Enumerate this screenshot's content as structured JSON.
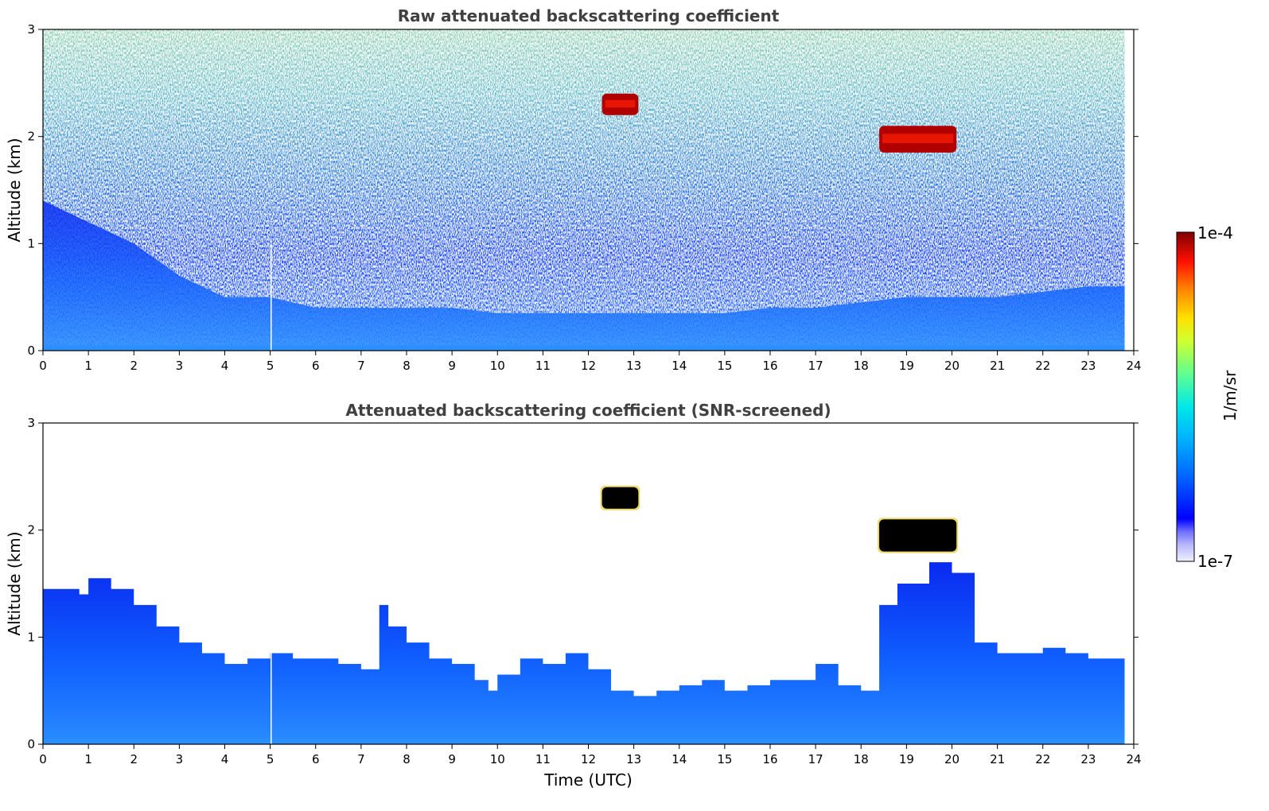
{
  "chart_data": [
    {
      "type": "heatmap",
      "title": "Raw attenuated backscattering coefficient",
      "xlabel": "",
      "ylabel": "Altitude (km)",
      "xlim": [
        0,
        24
      ],
      "ylim": [
        0,
        3
      ],
      "xticks": [
        "0",
        "1",
        "2",
        "3",
        "4",
        "5",
        "6",
        "7",
        "8",
        "9",
        "10",
        "11",
        "12",
        "13",
        "14",
        "15",
        "16",
        "17",
        "18",
        "19",
        "20",
        "21",
        "22",
        "23",
        "24"
      ],
      "yticks": [
        "0",
        "1",
        "2",
        "3"
      ],
      "grid": false,
      "colormap": "jet",
      "color_scale": "log",
      "boundary_layer_top_km": {
        "time_utc": [
          0,
          1,
          2,
          3,
          4,
          5,
          6,
          7,
          8,
          9,
          10,
          11,
          12,
          13,
          14,
          15,
          16,
          17,
          18,
          19,
          20,
          21,
          22,
          23,
          23.8
        ],
        "altitude": [
          1.4,
          1.2,
          1.0,
          0.7,
          0.5,
          0.5,
          0.4,
          0.4,
          0.4,
          0.4,
          0.35,
          0.35,
          0.35,
          0.35,
          0.35,
          0.35,
          0.4,
          0.4,
          0.45,
          0.5,
          0.5,
          0.5,
          0.55,
          0.6,
          0.6
        ]
      },
      "clouds": [
        {
          "t_start": 12.3,
          "t_end": 13.1,
          "alt_bottom_km": 2.2,
          "alt_top_km": 2.4,
          "level": "high"
        },
        {
          "t_start": 18.4,
          "t_end": 20.1,
          "alt_bottom_km": 1.85,
          "alt_top_km": 2.1,
          "level": "high"
        }
      ],
      "data_end_utc": 23.8
    },
    {
      "type": "heatmap",
      "title": "Attenuated backscattering coefficient (SNR-screened)",
      "xlabel": "Time (UTC)",
      "ylabel": "Altitude (km)",
      "xlim": [
        0,
        24
      ],
      "ylim": [
        0,
        3
      ],
      "xticks": [
        "0",
        "1",
        "2",
        "3",
        "4",
        "5",
        "6",
        "7",
        "8",
        "9",
        "10",
        "11",
        "12",
        "13",
        "14",
        "15",
        "16",
        "17",
        "18",
        "19",
        "20",
        "21",
        "22",
        "23",
        "24"
      ],
      "yticks": [
        "0",
        "1",
        "2",
        "3"
      ],
      "grid": false,
      "colormap": "jet",
      "color_scale": "log",
      "boundary_layer_top_km": {
        "time_utc": [
          0,
          0.8,
          1,
          1.5,
          2,
          2.5,
          3,
          3.5,
          4,
          4.5,
          5,
          5.5,
          6,
          6.5,
          7,
          7.4,
          7.6,
          8,
          8.5,
          9,
          9.5,
          9.8,
          10,
          10.5,
          11,
          11.5,
          12,
          12.5,
          13,
          13.5,
          14,
          14.5,
          15,
          15.5,
          16,
          16.5,
          17,
          17.5,
          18,
          18.4,
          18.8,
          19.5,
          20,
          20.5,
          21,
          21.5,
          22,
          22.5,
          23,
          23.5,
          23.8
        ],
        "altitude": [
          1.45,
          1.4,
          1.55,
          1.45,
          1.3,
          1.1,
          0.95,
          0.85,
          0.75,
          0.8,
          0.85,
          0.8,
          0.8,
          0.75,
          0.7,
          1.3,
          1.1,
          0.95,
          0.8,
          0.75,
          0.6,
          0.5,
          0.65,
          0.8,
          0.75,
          0.85,
          0.7,
          0.5,
          0.45,
          0.5,
          0.55,
          0.6,
          0.5,
          0.55,
          0.6,
          0.6,
          0.75,
          0.55,
          0.5,
          1.3,
          1.5,
          1.7,
          1.6,
          0.95,
          0.85,
          0.85,
          0.9,
          0.85,
          0.8,
          0.8,
          0.8
        ]
      },
      "clouds": [
        {
          "t_start": 12.3,
          "t_end": 13.1,
          "alt_bottom_km": 2.2,
          "alt_top_km": 2.4,
          "level": "saturated"
        },
        {
          "t_start": 18.4,
          "t_end": 20.1,
          "alt_bottom_km": 1.8,
          "alt_top_km": 2.1,
          "level": "saturated"
        }
      ],
      "data_end_utc": 23.8
    }
  ],
  "colorbar": {
    "max_label": "1e-4",
    "min_label": "1e-7",
    "label": "1/m/sr",
    "colors": [
      "#f0f0ff",
      "#b8b8ff",
      "#8080ff",
      "#0000ff",
      "#0050ff",
      "#00a0ff",
      "#00e0ff",
      "#40ffc0",
      "#a0ff60",
      "#ffff00",
      "#ffc000",
      "#ff6000",
      "#ff0000",
      "#c00000",
      "#800000"
    ]
  }
}
